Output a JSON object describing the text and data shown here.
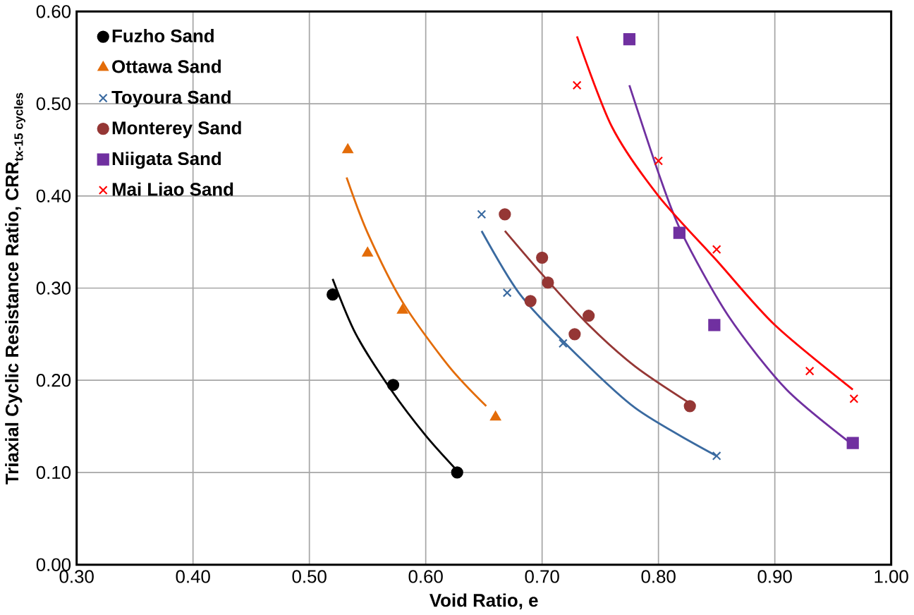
{
  "chart_data": {
    "type": "scatter",
    "xlabel": "Void Ratio, e",
    "ylabel": "\\textbf{Triaxial Cyclic Resistance Ratio, CRR}_{\\textbf{tx-15 cycles}}",
    "xlim": [
      0.3,
      1.0
    ],
    "ylim": [
      0,
      0.6
    ],
    "xticks": [
      {
        "value": 0.3,
        "label": "0.30"
      },
      {
        "value": 0.4,
        "label": "0.40"
      },
      {
        "value": 0.5,
        "label": "0.50"
      },
      {
        "value": 0.6,
        "label": "0.60"
      },
      {
        "value": 0.7,
        "label": "0.70"
      },
      {
        "value": 0.8,
        "label": "0.80"
      },
      {
        "value": 0.9,
        "label": "0.90"
      },
      {
        "value": 1.0,
        "label": "1.00"
      }
    ],
    "yticks": [
      {
        "value": 0,
        "label": "0.00"
      },
      {
        "value": 0.1,
        "label": "0.10"
      },
      {
        "value": 0.2,
        "label": "0.20"
      },
      {
        "value": 0.3,
        "label": "0.30"
      },
      {
        "value": 0.4,
        "label": "0.40"
      },
      {
        "value": 0.5,
        "label": "0.50"
      },
      {
        "value": 0.6,
        "label": "0.60"
      }
    ],
    "grid": true,
    "legend": "top left",
    "series": [
      {
        "name": "Fuzho Sand",
        "color": "#000000",
        "marker": "circle",
        "x": [
          0.52,
          0.572,
          0.627
        ],
        "values": [
          0.293,
          0.195,
          0.1
        ]
      },
      {
        "name": "Ottawa Sand",
        "color": "#e36c09",
        "marker": "triangle",
        "x": [
          0.533,
          0.55,
          0.58,
          0.66
        ],
        "values": [
          0.45,
          0.338,
          0.276,
          0.16
        ]
      },
      {
        "name": "Toyoura Sand",
        "color": "#3a6aa0",
        "marker": "cross",
        "x": [
          0.648,
          0.67,
          0.718,
          0.85
        ],
        "values": [
          0.38,
          0.295,
          0.24,
          0.118
        ]
      },
      {
        "name": "Monterey Sand",
        "color": "#953735",
        "marker": "circle",
        "x": [
          0.668,
          0.69,
          0.7,
          0.705,
          0.728,
          0.74,
          0.827
        ],
        "values": [
          0.38,
          0.286,
          0.333,
          0.306,
          0.25,
          0.27,
          0.172
        ]
      },
      {
        "name": "Niigata Sand",
        "color": "#7030a0",
        "marker": "square",
        "x": [
          0.775,
          0.818,
          0.848,
          0.967
        ],
        "values": [
          0.57,
          0.36,
          0.26,
          0.132
        ]
      },
      {
        "name": "Mai Liao Sand",
        "color": "#ff0000",
        "marker": "cross",
        "x": [
          0.73,
          0.8,
          0.85,
          0.93,
          0.968
        ],
        "values": [
          0.52,
          0.438,
          0.342,
          0.21,
          0.18
        ]
      },
      {
        "type": "line",
        "color": "#000000",
        "marker": "none",
        "x": [
          0.52,
          0.54,
          0.57,
          0.6,
          0.627
        ],
        "values": [
          0.31,
          0.25,
          0.19,
          0.14,
          0.102
        ]
      },
      {
        "type": "line",
        "color": "#e36c09",
        "marker": "none",
        "x": [
          0.532,
          0.55,
          0.58,
          0.62,
          0.652
        ],
        "values": [
          0.42,
          0.36,
          0.285,
          0.215,
          0.172
        ]
      },
      {
        "type": "line",
        "color": "#3a6aa0",
        "marker": "none",
        "x": [
          0.648,
          0.68,
          0.72,
          0.78,
          0.85
        ],
        "values": [
          0.362,
          0.295,
          0.24,
          0.17,
          0.118
        ]
      },
      {
        "type": "line",
        "color": "#953735",
        "marker": "none",
        "x": [
          0.668,
          0.7,
          0.74,
          0.78,
          0.827
        ],
        "values": [
          0.362,
          0.315,
          0.26,
          0.215,
          0.175
        ]
      },
      {
        "type": "line",
        "color": "#7030a0",
        "marker": "none",
        "x": [
          0.775,
          0.8,
          0.82,
          0.86,
          0.91,
          0.967
        ],
        "values": [
          0.52,
          0.425,
          0.36,
          0.27,
          0.19,
          0.13
        ]
      },
      {
        "type": "line",
        "color": "#ff0000",
        "marker": "none",
        "x": [
          0.73,
          0.76,
          0.8,
          0.85,
          0.9,
          0.967
        ],
        "values": [
          0.573,
          0.475,
          0.4,
          0.33,
          0.26,
          0.19
        ]
      }
    ]
  }
}
